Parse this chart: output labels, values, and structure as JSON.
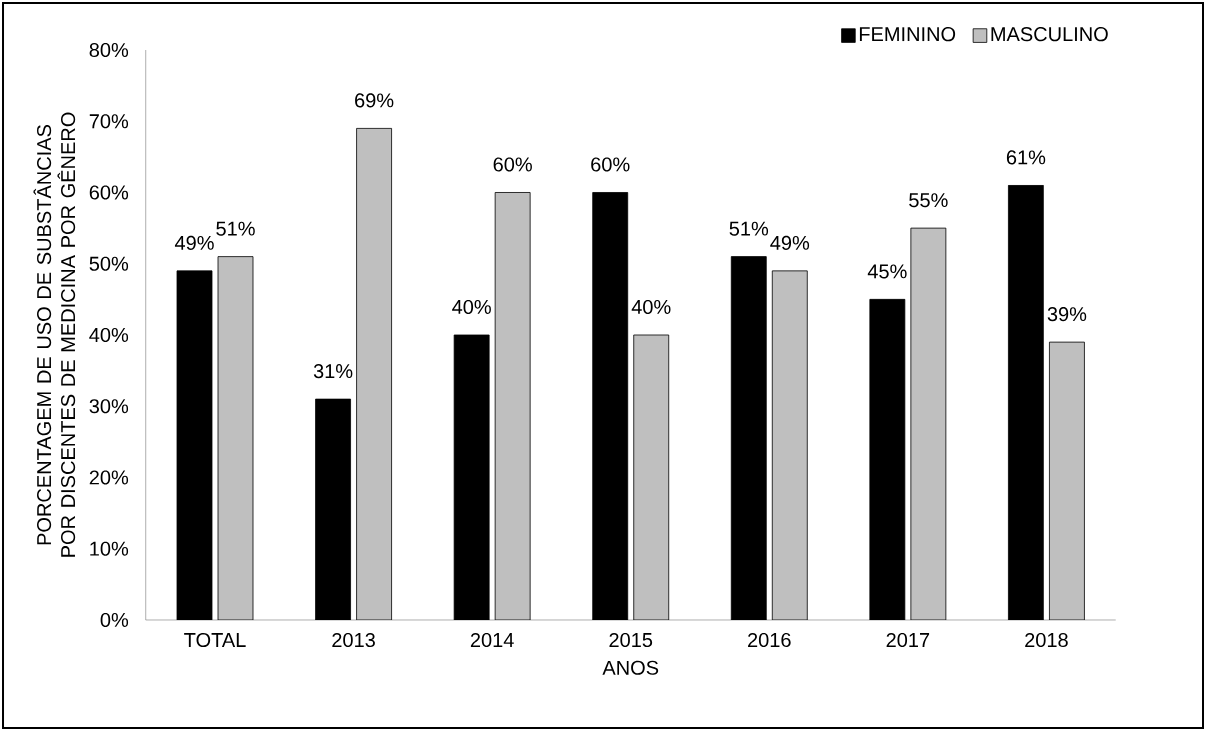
{
  "chart_data": {
    "type": "bar",
    "xlabel": "ANOS",
    "ylabel": "PORCENTAGEM DE USO DE SUBSTÂNCIAS POR DISCENTES DE MEDICINA POR GÊNERO",
    "categories": [
      "TOTAL",
      "2013",
      "2014",
      "2015",
      "2016",
      "2017",
      "2018"
    ],
    "series": [
      {
        "name": "FEMININO",
        "color": "#000000",
        "values": [
          49,
          31,
          40,
          60,
          51,
          45,
          61
        ],
        "value_labels": [
          "49%",
          "31%",
          "40%",
          "60%",
          "51%",
          "45%",
          "61%"
        ]
      },
      {
        "name": "MASCULINO",
        "color": "#bfbfbf",
        "values": [
          51,
          69,
          60,
          40,
          49,
          55,
          39
        ],
        "value_labels": [
          "51%",
          "69%",
          "60%",
          "40%",
          "49%",
          "55%",
          "39%"
        ]
      }
    ],
    "ylim": [
      0,
      80
    ],
    "yticks": [
      {
        "value": 0,
        "label": "0%"
      },
      {
        "value": 10,
        "label": "10%"
      },
      {
        "value": 20,
        "label": "20%"
      },
      {
        "value": 30,
        "label": "30%"
      },
      {
        "value": 40,
        "label": "40%"
      },
      {
        "value": 50,
        "label": "50%"
      },
      {
        "value": 60,
        "label": "60%"
      },
      {
        "value": 70,
        "label": "70%"
      },
      {
        "value": 80,
        "label": "80%"
      }
    ],
    "legend": "top right",
    "grid": false
  }
}
